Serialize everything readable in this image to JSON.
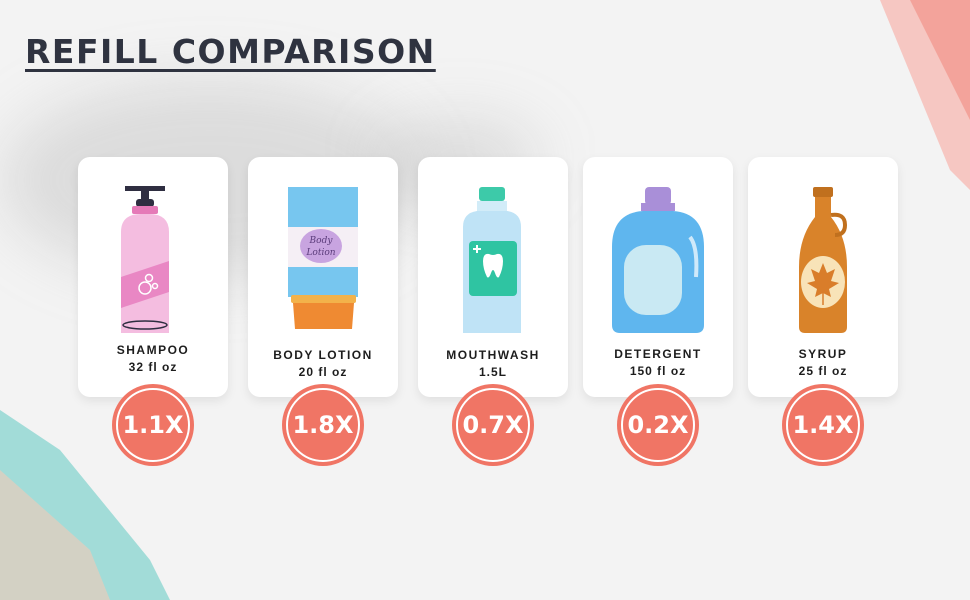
{
  "title": "REFILL COMPARISON",
  "accent_color": "#f07565",
  "items": [
    {
      "name": "SHAMPOO",
      "size": "32 fl oz",
      "ratio": "1.1X",
      "icon": "shampoo-bottle-icon"
    },
    {
      "name": "BODY LOTION",
      "size": "20 fl oz",
      "ratio": "1.8X",
      "icon": "lotion-tube-icon",
      "label_text": "Body Lotion"
    },
    {
      "name": "MOUTHWASH",
      "size": "1.5L",
      "ratio": "0.7X",
      "icon": "mouthwash-bottle-icon"
    },
    {
      "name": "DETERGENT",
      "size": "150 fl oz",
      "ratio": "0.2X",
      "icon": "detergent-jug-icon"
    },
    {
      "name": "SYRUP",
      "size": "25 fl oz",
      "ratio": "1.4X",
      "icon": "syrup-bottle-icon"
    }
  ]
}
